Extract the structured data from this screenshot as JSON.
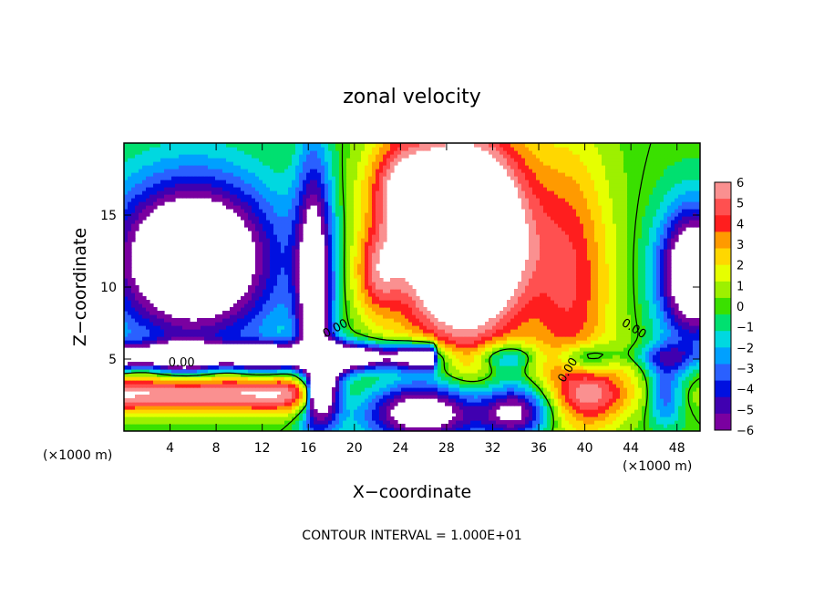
{
  "chart_data": {
    "type": "heatmap",
    "title": "zonal velocity",
    "xlabel": "X−coordinate",
    "ylabel": "Z−coordinate",
    "x_unit_left": "(×1000 m)",
    "x_unit_right": "(×1000 m)",
    "footer": "CONTOUR INTERVAL = 1.000E+01",
    "xlim": [
      0,
      50
    ],
    "ylim": [
      0,
      20
    ],
    "x_ticks": [
      "4",
      "8",
      "12",
      "16",
      "20",
      "24",
      "28",
      "32",
      "36",
      "40",
      "44",
      "48"
    ],
    "x_tick_values": [
      4,
      8,
      12,
      16,
      20,
      24,
      28,
      32,
      36,
      40,
      44,
      48
    ],
    "y_ticks": [
      "5",
      "10",
      "15"
    ],
    "y_tick_values": [
      5,
      10,
      15
    ],
    "colorbar": {
      "labels": [
        "6",
        "5",
        "4",
        "3",
        "2",
        "1",
        "0",
        "−1",
        "−2",
        "−3",
        "−4",
        "−5",
        "−6"
      ],
      "values": [
        6,
        5,
        4,
        3,
        2,
        1,
        0,
        -1,
        -2,
        -3,
        -4,
        -5,
        -6
      ],
      "colors": [
        "#fa9090",
        "#ff5050",
        "#ff1e1e",
        "#ff9a00",
        "#ffd700",
        "#e6ff00",
        "#9df000",
        "#3ae000",
        "#00e070",
        "#00d8e0",
        "#00a0ff",
        "#2a60ff",
        "#0010e0",
        "#4000b0",
        "#7a00a0"
      ]
    },
    "contour_labels": [
      {
        "text": "0.00",
        "x": 5,
        "y": 4.5,
        "angle": 0
      },
      {
        "text": "0.00",
        "x": 18.5,
        "y": 6.9,
        "angle": -28
      },
      {
        "text": "0.00",
        "x": 38.8,
        "y": 4.1,
        "angle": -58
      },
      {
        "text": "0.00",
        "x": 44.1,
        "y": 6.9,
        "angle": 32
      }
    ]
  }
}
